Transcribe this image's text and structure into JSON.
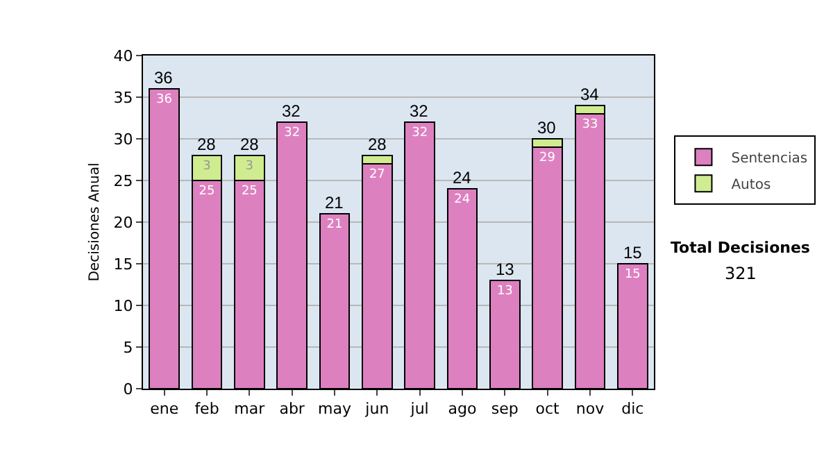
{
  "chart_data": {
    "type": "bar",
    "stacked": true,
    "ylabel": "Decisiones Anual",
    "categories": [
      "ene",
      "feb",
      "mar",
      "abr",
      "may",
      "jun",
      "jul",
      "ago",
      "sep",
      "oct",
      "nov",
      "dic"
    ],
    "series": [
      {
        "name": "Sentencias",
        "color": "#dd80c0",
        "values": [
          36,
          25,
          25,
          32,
          21,
          27,
          32,
          24,
          13,
          29,
          33,
          15
        ],
        "value_labels": [
          "36",
          "25",
          "25",
          "32",
          "21",
          "27",
          "32",
          "24",
          "13",
          "29",
          "33",
          "15"
        ]
      },
      {
        "name": "Autos",
        "color": "#d0ec90",
        "values": [
          null,
          3,
          3,
          null,
          null,
          1,
          null,
          null,
          null,
          1,
          1,
          null
        ],
        "value_labels": [
          null,
          "3",
          "3",
          null,
          null,
          null,
          null,
          null,
          null,
          null,
          null,
          null
        ]
      }
    ],
    "totals": [
      "36",
      "28",
      "28",
      "32",
      "21",
      "28",
      "32",
      "24",
      "13",
      "30",
      "34",
      "15"
    ],
    "ylim": [
      0,
      40
    ],
    "yticks": [
      0,
      5,
      10,
      15,
      20,
      25,
      30,
      35,
      40
    ],
    "grid": "y",
    "legend": "right",
    "annotations": [
      "Total Decisiones",
      "321"
    ]
  }
}
